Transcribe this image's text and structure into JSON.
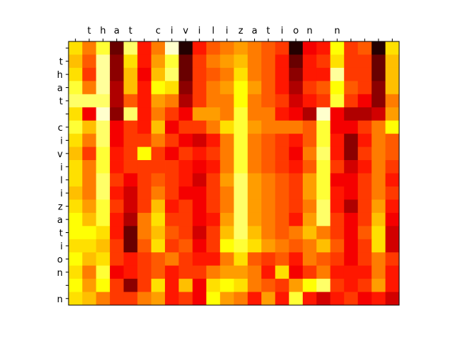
{
  "chart_data": {
    "type": "heatmap",
    "title": "",
    "xlabel": "",
    "ylabel": "",
    "x_tick_labels": [
      " ",
      "t",
      "h",
      "a",
      "t",
      " ",
      "c",
      "i",
      "v",
      "i",
      "l",
      "i",
      "z",
      "a",
      "t",
      "i",
      "o",
      "n",
      " ",
      "n",
      " ",
      " ",
      " ",
      " "
    ],
    "y_tick_labels": [
      " ",
      "t",
      "h",
      "a",
      "t",
      " ",
      "c",
      "i",
      "v",
      "i",
      "l",
      "i",
      "z",
      "a",
      "t",
      "i",
      "o",
      "n",
      " ",
      "n"
    ],
    "colormap": "hot",
    "value_range": [
      0,
      1
    ],
    "x_axis_position": "top",
    "grid": false,
    "values": [
      [
        0.7,
        0.55,
        0.8,
        0.15,
        0.85,
        0.4,
        0.55,
        0.95,
        0.05,
        0.4,
        0.5,
        0.55,
        0.6,
        0.55,
        0.5,
        0.45,
        0.05,
        0.35,
        0.4,
        0.75,
        0.45,
        0.5,
        0.05,
        0.7
      ],
      [
        0.65,
        0.5,
        0.9,
        0.2,
        0.7,
        0.4,
        0.6,
        0.8,
        0.15,
        0.45,
        0.55,
        0.6,
        0.65,
        0.55,
        0.5,
        0.4,
        0.15,
        0.4,
        0.45,
        0.7,
        0.45,
        0.45,
        0.15,
        0.65
      ],
      [
        0.7,
        0.45,
        0.9,
        0.2,
        0.65,
        0.35,
        0.65,
        0.85,
        0.15,
        0.45,
        0.5,
        0.55,
        0.7,
        0.55,
        0.5,
        0.4,
        0.2,
        0.4,
        0.4,
        0.9,
        0.45,
        0.45,
        0.15,
        0.65
      ],
      [
        0.8,
        0.55,
        0.9,
        0.25,
        0.65,
        0.4,
        0.75,
        0.7,
        0.2,
        0.45,
        0.55,
        0.6,
        0.75,
        0.6,
        0.5,
        0.4,
        0.25,
        0.45,
        0.5,
        0.75,
        0.5,
        0.45,
        0.2,
        0.65
      ],
      [
        0.85,
        0.85,
        0.85,
        0.25,
        0.5,
        0.4,
        0.6,
        0.55,
        0.25,
        0.45,
        0.55,
        0.55,
        0.75,
        0.55,
        0.5,
        0.45,
        0.3,
        0.4,
        0.45,
        0.8,
        0.45,
        0.35,
        0.2,
        0.55
      ],
      [
        0.7,
        0.35,
        0.95,
        0.2,
        0.85,
        0.4,
        0.55,
        0.45,
        0.35,
        0.6,
        0.6,
        0.55,
        0.8,
        0.55,
        0.55,
        0.4,
        0.35,
        0.25,
        0.95,
        0.35,
        0.25,
        0.25,
        0.3,
        0.6
      ],
      [
        0.8,
        0.65,
        0.85,
        0.35,
        0.45,
        0.4,
        0.65,
        0.35,
        0.45,
        0.45,
        0.55,
        0.7,
        0.8,
        0.6,
        0.55,
        0.55,
        0.55,
        0.5,
        0.8,
        0.35,
        0.35,
        0.45,
        0.55,
        0.75
      ],
      [
        0.7,
        0.55,
        0.85,
        0.35,
        0.45,
        0.45,
        0.55,
        0.45,
        0.35,
        0.3,
        0.4,
        0.55,
        0.8,
        0.55,
        0.5,
        0.45,
        0.4,
        0.5,
        0.8,
        0.4,
        0.2,
        0.4,
        0.55,
        0.5
      ],
      [
        0.65,
        0.45,
        0.8,
        0.4,
        0.45,
        0.75,
        0.45,
        0.35,
        0.45,
        0.4,
        0.45,
        0.55,
        0.8,
        0.55,
        0.5,
        0.45,
        0.35,
        0.55,
        0.85,
        0.4,
        0.2,
        0.45,
        0.55,
        0.5
      ],
      [
        0.7,
        0.55,
        0.8,
        0.4,
        0.45,
        0.45,
        0.45,
        0.45,
        0.4,
        0.35,
        0.4,
        0.55,
        0.8,
        0.55,
        0.5,
        0.45,
        0.4,
        0.5,
        0.8,
        0.45,
        0.3,
        0.4,
        0.55,
        0.45
      ],
      [
        0.7,
        0.55,
        0.85,
        0.45,
        0.35,
        0.45,
        0.5,
        0.45,
        0.4,
        0.3,
        0.45,
        0.6,
        0.85,
        0.6,
        0.55,
        0.5,
        0.45,
        0.6,
        0.8,
        0.35,
        0.35,
        0.45,
        0.55,
        0.4
      ],
      [
        0.65,
        0.55,
        0.85,
        0.4,
        0.3,
        0.45,
        0.55,
        0.45,
        0.35,
        0.35,
        0.45,
        0.55,
        0.85,
        0.6,
        0.55,
        0.5,
        0.45,
        0.6,
        0.8,
        0.4,
        0.35,
        0.45,
        0.55,
        0.45
      ],
      [
        0.7,
        0.6,
        0.8,
        0.45,
        0.3,
        0.45,
        0.65,
        0.4,
        0.45,
        0.35,
        0.45,
        0.55,
        0.85,
        0.6,
        0.55,
        0.5,
        0.45,
        0.55,
        0.85,
        0.4,
        0.25,
        0.45,
        0.6,
        0.4
      ],
      [
        0.75,
        0.65,
        0.8,
        0.4,
        0.25,
        0.55,
        0.7,
        0.45,
        0.45,
        0.35,
        0.4,
        0.6,
        0.85,
        0.6,
        0.55,
        0.5,
        0.4,
        0.6,
        0.85,
        0.45,
        0.35,
        0.45,
        0.65,
        0.35
      ],
      [
        0.75,
        0.75,
        0.7,
        0.4,
        0.15,
        0.55,
        0.65,
        0.5,
        0.45,
        0.3,
        0.45,
        0.65,
        0.85,
        0.65,
        0.55,
        0.5,
        0.55,
        0.65,
        0.55,
        0.45,
        0.35,
        0.5,
        0.7,
        0.3
      ],
      [
        0.7,
        0.7,
        0.65,
        0.45,
        0.15,
        0.5,
        0.7,
        0.45,
        0.5,
        0.35,
        0.45,
        0.75,
        0.8,
        0.7,
        0.6,
        0.55,
        0.5,
        0.55,
        0.65,
        0.5,
        0.35,
        0.45,
        0.7,
        0.3
      ],
      [
        0.75,
        0.65,
        0.7,
        0.45,
        0.4,
        0.45,
        0.5,
        0.55,
        0.45,
        0.4,
        0.4,
        0.55,
        0.7,
        0.5,
        0.45,
        0.5,
        0.4,
        0.55,
        0.5,
        0.45,
        0.35,
        0.45,
        0.55,
        0.45
      ],
      [
        0.7,
        0.55,
        0.8,
        0.35,
        0.4,
        0.45,
        0.5,
        0.4,
        0.45,
        0.45,
        0.55,
        0.6,
        0.6,
        0.55,
        0.4,
        0.7,
        0.35,
        0.45,
        0.55,
        0.4,
        0.4,
        0.4,
        0.55,
        0.4
      ],
      [
        0.75,
        0.6,
        0.75,
        0.45,
        0.2,
        0.45,
        0.7,
        0.4,
        0.65,
        0.35,
        0.7,
        0.75,
        0.7,
        0.55,
        0.5,
        0.45,
        0.6,
        0.75,
        0.85,
        0.45,
        0.4,
        0.45,
        0.6,
        0.4
      ],
      [
        0.7,
        0.65,
        0.55,
        0.45,
        0.45,
        0.55,
        0.6,
        0.4,
        0.45,
        0.35,
        0.75,
        0.6,
        0.55,
        0.4,
        0.6,
        0.4,
        0.8,
        0.4,
        0.3,
        0.4,
        0.45,
        0.35,
        0.4,
        0.3
      ]
    ]
  }
}
